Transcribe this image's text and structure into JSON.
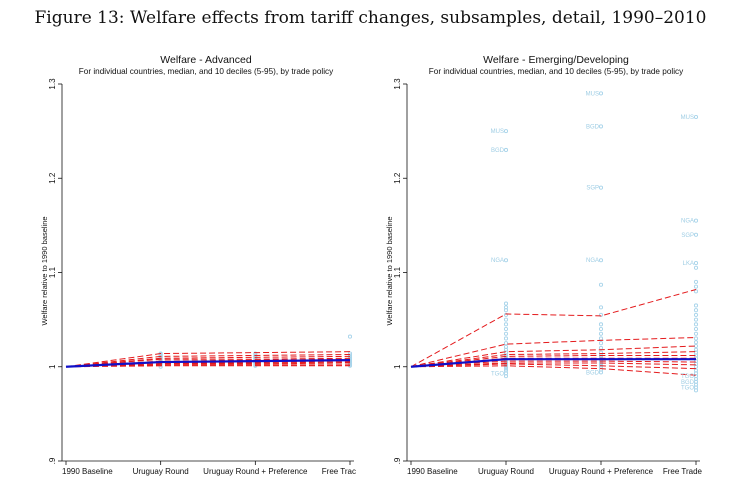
{
  "figure_title": "Figure 13: Welfare effects from tariff changes, subsamples, detail, 1990–2010",
  "colors": {
    "median_line": "#1010c8",
    "decile_lines": "#e41a1c",
    "points": "#a8d4ea",
    "labels": "#9ecde4"
  },
  "chart_data": [
    {
      "type": "line",
      "title": "Welfare - Advanced",
      "subtitle": "For individual countries, median, and 10 deciles (5-95), by trade policy",
      "xlabel": "",
      "ylabel": "Welfare relative to 1990 baseline",
      "categories": [
        "1990 Baseline",
        "Uruguay Round",
        "Uruguay Round + Preference",
        "Free Trade"
      ],
      "tick_labels": [
        "1990 Baseline",
        "Uruguay Round",
        "Uruguay Round + Preference",
        "Free Trac"
      ],
      "ylim": [
        0.9,
        1.3
      ],
      "yticks": [
        0.9,
        1,
        1.1,
        1.2,
        1.3
      ],
      "ytick_labels": [
        ".9",
        "1",
        "1.1",
        "1.2",
        "1.3"
      ],
      "median": [
        1.0,
        1.005,
        1.006,
        1.007
      ],
      "decile_series": [
        [
          1.0,
          1.014,
          1.015,
          1.016
        ],
        [
          1.0,
          1.011,
          1.012,
          1.013
        ],
        [
          1.0,
          1.009,
          1.01,
          1.011
        ],
        [
          1.0,
          1.008,
          1.008,
          1.009
        ],
        [
          1.0,
          1.006,
          1.007,
          1.008
        ],
        [
          1.0,
          1.005,
          1.005,
          1.006
        ],
        [
          1.0,
          1.004,
          1.004,
          1.005
        ],
        [
          1.0,
          1.003,
          1.003,
          1.004
        ],
        [
          1.0,
          1.002,
          1.002,
          1.002
        ],
        [
          1.0,
          1.001,
          1.001,
          1.001
        ]
      ],
      "points": [
        {
          "x": "Uruguay Round",
          "y": [
            1.0,
            1.002,
            1.003,
            1.004,
            1.005,
            1.006,
            1.007,
            1.008,
            1.009,
            1.01,
            1.011,
            1.012,
            1.013,
            1.014
          ]
        },
        {
          "x": "Uruguay Round + Preference",
          "y": [
            1.001,
            1.002,
            1.003,
            1.004,
            1.005,
            1.006,
            1.007,
            1.008,
            1.009,
            1.01,
            1.011,
            1.012,
            1.014
          ]
        },
        {
          "x": "Free Trade",
          "y": [
            1.001,
            1.002,
            1.003,
            1.004,
            1.005,
            1.006,
            1.007,
            1.008,
            1.009,
            1.01,
            1.012,
            1.014,
            1.032
          ]
        }
      ],
      "annotations": []
    },
    {
      "type": "line",
      "title": "Welfare - Emerging/Developing",
      "subtitle": "For individual countries, median, and 10 deciles (5-95), by trade policy",
      "xlabel": "",
      "ylabel": "Welfare relative to 1990 baseline",
      "categories": [
        "1990 Baseline",
        "Uruguay Round",
        "Uruguay Round + Preference",
        "Free Trade"
      ],
      "tick_labels": [
        "1990 Baseline",
        "Uruguay Round",
        "Uruguay Round + Preference",
        "Free Trade"
      ],
      "ylim": [
        0.9,
        1.3
      ],
      "yticks": [
        0.9,
        1,
        1.1,
        1.2,
        1.3
      ],
      "ytick_labels": [
        ".9",
        "1",
        "1.1",
        "1.2",
        "1.3"
      ],
      "median": [
        1.0,
        1.008,
        1.008,
        1.008
      ],
      "decile_series": [
        [
          1.0,
          1.056,
          1.054,
          1.082
        ],
        [
          1.0,
          1.024,
          1.028,
          1.031
        ],
        [
          1.0,
          1.016,
          1.018,
          1.022
        ],
        [
          1.0,
          1.013,
          1.014,
          1.016
        ],
        [
          1.0,
          1.011,
          1.012,
          1.012
        ],
        [
          1.0,
          1.009,
          1.009,
          1.009
        ],
        [
          1.0,
          1.006,
          1.006,
          1.005
        ],
        [
          1.0,
          1.004,
          1.004,
          1.002
        ],
        [
          1.0,
          1.003,
          1.001,
          0.998
        ],
        [
          1.0,
          1.001,
          0.998,
          0.991
        ]
      ],
      "points": [
        {
          "x": "Uruguay Round",
          "y": [
            0.99,
            0.993,
            0.996,
            0.998,
            1.0,
            1.002,
            1.004,
            1.006,
            1.008,
            1.01,
            1.012,
            1.015,
            1.018,
            1.021,
            1.025,
            1.03,
            1.035,
            1.04,
            1.045,
            1.05,
            1.055,
            1.06,
            1.063,
            1.067,
            1.113,
            1.23,
            1.25
          ]
        },
        {
          "x": "Uruguay Round + Preference",
          "y": [
            0.994,
            0.997,
            1.0,
            1.002,
            1.004,
            1.006,
            1.008,
            1.01,
            1.012,
            1.015,
            1.02,
            1.025,
            1.03,
            1.035,
            1.04,
            1.045,
            1.055,
            1.063,
            1.087,
            1.113,
            1.19,
            1.255,
            1.29
          ]
        },
        {
          "x": "Free Trade",
          "y": [
            0.975,
            0.978,
            0.981,
            0.984,
            0.987,
            0.99,
            0.993,
            0.996,
            1.0,
            1.003,
            1.006,
            1.009,
            1.012,
            1.015,
            1.018,
            1.022,
            1.026,
            1.03,
            1.035,
            1.04,
            1.045,
            1.05,
            1.055,
            1.06,
            1.065,
            1.08,
            1.085,
            1.09,
            1.105,
            1.11,
            1.14,
            1.155,
            1.265
          ]
        }
      ],
      "annotations": [
        {
          "text": "MUS",
          "x": "Uruguay Round",
          "y": 1.25
        },
        {
          "text": "BGD",
          "x": "Uruguay Round",
          "y": 1.23
        },
        {
          "text": "NGA",
          "x": "Uruguay Round",
          "y": 1.113
        },
        {
          "text": "TGO",
          "x": "Uruguay Round",
          "y": 0.993
        },
        {
          "text": "MUS",
          "x": "Uruguay Round + Preference",
          "y": 1.29
        },
        {
          "text": "BGD",
          "x": "Uruguay Round + Preference",
          "y": 1.255
        },
        {
          "text": "SGP",
          "x": "Uruguay Round + Preference",
          "y": 1.19
        },
        {
          "text": "NGA",
          "x": "Uruguay Round + Preference",
          "y": 1.113
        },
        {
          "text": "BGD",
          "x": "Uruguay Round + Preference",
          "y": 0.994
        },
        {
          "text": "MUS",
          "x": "Free Trade",
          "y": 1.265
        },
        {
          "text": "NGA",
          "x": "Free Trade",
          "y": 1.155
        },
        {
          "text": "SGP",
          "x": "Free Trade",
          "y": 1.14
        },
        {
          "text": "LKA",
          "x": "Free Trade",
          "y": 1.11
        },
        {
          "text": "TGO",
          "x": "Free Trade",
          "y": 0.99
        },
        {
          "text": "BGD",
          "x": "Free Trade",
          "y": 0.984
        },
        {
          "text": "TGO",
          "x": "Free Trade",
          "y": 0.978
        }
      ]
    }
  ]
}
